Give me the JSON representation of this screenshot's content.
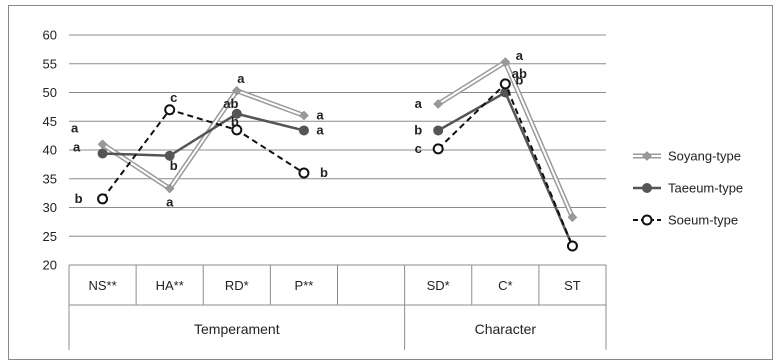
{
  "chart_data": {
    "type": "line",
    "title": "",
    "xlabel": "",
    "ylabel": "",
    "ylim": [
      20,
      60
    ],
    "yticks": [
      20,
      25,
      30,
      35,
      40,
      45,
      50,
      55,
      60
    ],
    "grid": true,
    "legend_position": "right",
    "categories": [
      "NS**",
      "HA**",
      "RD*",
      "P**",
      "",
      "SD*",
      "C*",
      "ST"
    ],
    "groups": [
      {
        "label": "Temperament",
        "start": 0,
        "end": 4
      },
      {
        "label": "Character",
        "start": 5,
        "end": 7
      }
    ],
    "series": [
      {
        "name": "Soyang-type",
        "color": "#9a9a9a",
        "style": "double-line-diamond",
        "values": [
          41,
          33.3,
          50.3,
          46,
          null,
          48,
          55.3,
          28.3
        ],
        "letters": [
          "a",
          "a",
          "a",
          "a",
          null,
          "a",
          "a",
          null
        ]
      },
      {
        "name": "Taeeum-type",
        "color": "#555555",
        "style": "solid-circle",
        "values": [
          39.4,
          39,
          46.3,
          43.4,
          null,
          43.4,
          50,
          23.3
        ],
        "letters": [
          "a",
          "b",
          "ab",
          "a",
          null,
          "b",
          "b",
          null
        ]
      },
      {
        "name": "Soeum-type",
        "color": "#111111",
        "style": "dashed-open-circle",
        "values": [
          31.5,
          47,
          43.5,
          36,
          null,
          40.2,
          51.5,
          23.3
        ],
        "letters": [
          "b",
          "c",
          "b",
          "b",
          null,
          "c",
          "ab",
          null
        ]
      }
    ]
  }
}
